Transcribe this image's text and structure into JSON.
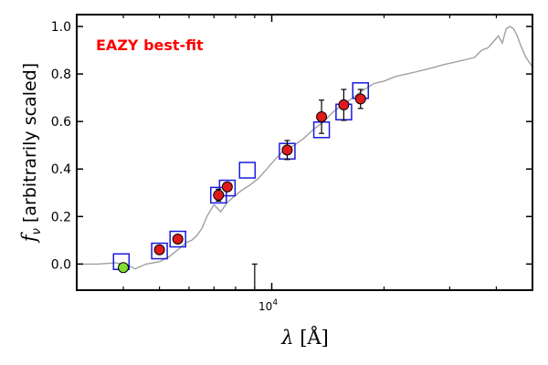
{
  "chart_data": {
    "type": "scatter",
    "title": "",
    "annotation": "EAZY best-fit",
    "annotation_position": "top-left",
    "xlabel": "λ [Å]",
    "ylabel": "f_ν [arbitrarily scaled]",
    "ylabel_symbol": "f",
    "ylabel_symbol_sub": "ν",
    "ylabel_text": " [arbitrarily scaled]",
    "xlabel_symbol": "λ",
    "xlabel_unit": " [Å]",
    "xscale": "log",
    "xlim": [
      3000,
      50000
    ],
    "ylim": [
      -0.11,
      1.05
    ],
    "yticks": [
      0.0,
      0.2,
      0.4,
      0.6,
      0.8,
      1.0
    ],
    "ytick_labels": [
      "0.0",
      "0.2",
      "0.4",
      "0.6",
      "0.8",
      "1.0"
    ],
    "xtick_label": {
      "value": 10000,
      "base": "10",
      "exp": "4"
    },
    "xtick_minor": [
      4000,
      5000,
      6000,
      7000,
      8000,
      9000,
      20000,
      30000,
      40000
    ],
    "colors": {
      "template": "#a0a0a0",
      "model_box": "#1a1adc",
      "detection": "#e01b1b",
      "nondetection": "#7fe030",
      "annotation": "#ff0000"
    },
    "series": [
      {
        "name": "best-fit template",
        "kind": "line",
        "x": [
          3000,
          3400,
          3800,
          4050,
          4300,
          4600,
          5000,
          5300,
          5600,
          5900,
          6100,
          6300,
          6500,
          6700,
          7000,
          7300,
          7600,
          8000,
          8300,
          8700,
          9200,
          9700,
          10200,
          10800,
          11500,
          12200,
          13000,
          13800,
          14600,
          15500,
          16500,
          17500,
          18800,
          20000,
          21500,
          23000,
          24500,
          26000,
          27500,
          29000,
          31000,
          33000,
          35000,
          36500,
          38000,
          39500,
          40500,
          41500,
          42500,
          43500,
          44500,
          45500,
          46500,
          48000,
          50000
        ],
        "y": [
          0.0,
          0.0,
          0.005,
          0.0,
          -0.02,
          0.0,
          0.01,
          0.03,
          0.06,
          0.09,
          0.1,
          0.12,
          0.15,
          0.2,
          0.25,
          0.22,
          0.26,
          0.29,
          0.31,
          0.33,
          0.36,
          0.4,
          0.44,
          0.48,
          0.5,
          0.53,
          0.57,
          0.6,
          0.64,
          0.67,
          0.7,
          0.73,
          0.76,
          0.77,
          0.79,
          0.8,
          0.81,
          0.82,
          0.83,
          0.84,
          0.85,
          0.86,
          0.87,
          0.9,
          0.91,
          0.94,
          0.96,
          0.93,
          0.99,
          1.0,
          0.99,
          0.96,
          0.92,
          0.87,
          0.83
        ]
      },
      {
        "name": "model photometry",
        "kind": "open-square",
        "x": [
          3950,
          5000,
          5600,
          7200,
          7600,
          8600,
          11000,
          13600,
          15600,
          17300
        ],
        "y": [
          0.01,
          0.055,
          0.105,
          0.29,
          0.32,
          0.395,
          0.475,
          0.565,
          0.64,
          0.73
        ]
      },
      {
        "name": "observed photometry",
        "kind": "filled-circle",
        "x": [
          5000,
          5600,
          7200,
          7600,
          11000,
          13600,
          15600,
          17300
        ],
        "y": [
          0.06,
          0.105,
          0.29,
          0.325,
          0.48,
          0.62,
          0.67,
          0.695
        ],
        "yerr": [
          0.01,
          0.01,
          0.025,
          0.015,
          0.04,
          0.07,
          0.065,
          0.04
        ]
      },
      {
        "name": "non-detection",
        "kind": "filled-circle",
        "x": [
          4000
        ],
        "y": [
          -0.015
        ]
      },
      {
        "name": "non-detection error",
        "kind": "errorbar",
        "x": [
          9000
        ],
        "y": [
          -0.11
        ],
        "yerr_upper": 0.11
      }
    ]
  }
}
